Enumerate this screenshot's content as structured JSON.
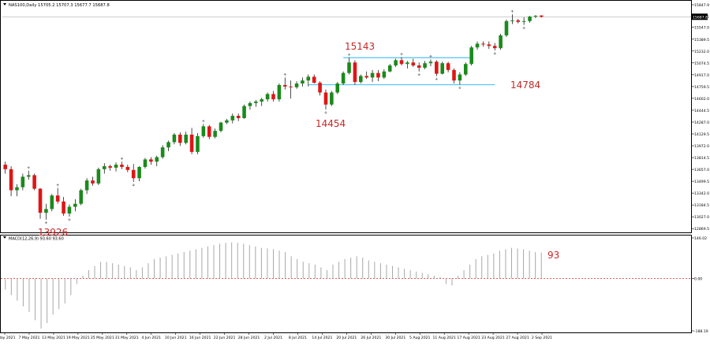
{
  "header": {
    "symbol_info": "NAS100,Daily  15705.2 15707.3 15677.7 15687.8",
    "indicator_info": "MACD(12,26,9) 93.60 93.60"
  },
  "annotations": {
    "low_start": "13926",
    "high_jul": "15143",
    "low_jul": "14454",
    "low_aug": "14784",
    "macd_value": "93"
  },
  "colors": {
    "bull": "#1a8a1a",
    "bear": "#e01515",
    "level_line": "#4fc3f7",
    "annotation": "#c62828",
    "zero_line": "#cc0000"
  },
  "chart_data": [
    {
      "type": "candlestick",
      "symbol": "NAS100",
      "timeframe": "Daily",
      "price_axis_labels": [
        "15847.9",
        "15690.1",
        "15547.0",
        "15389.5",
        "15232.0",
        "15074.5",
        "14917.0",
        "14759.5",
        "14602.0",
        "14444.5",
        "14287.0",
        "14129.5",
        "13972.0",
        "13814.5",
        "13657.0",
        "13499.5",
        "13342.0",
        "13184.5",
        "13027.0",
        "12869.5"
      ],
      "current_price_label": "15687.8",
      "date_labels": [
        "3 May 2021",
        "7 May 2021",
        "13 May 2021",
        "19 May 2021",
        "25 May 2021",
        "31 May 2021",
        "4 Jun 2021",
        "10 Jun 2021",
        "16 Jun 2021",
        "22 Jun 2021",
        "28 Jun 2021",
        "2 Jul 2021",
        "8 Jul 2021",
        "14 Jul 2021",
        "20 Jul 2021",
        "26 Jul 2021",
        "30 Jul 2021",
        "5 Aug 2021",
        "11 Aug 2021",
        "17 Aug 2021",
        "23 Aug 2021",
        "27 Aug 2021",
        "2 Sep 2021"
      ],
      "y_range": [
        12830,
        15890
      ],
      "levels": [
        15143,
        14784
      ],
      "candles": [
        {
          "o": 13720,
          "h": 13760,
          "l": 13600,
          "c": 13660
        },
        {
          "o": 13660,
          "h": 13700,
          "l": 13300,
          "c": 13380
        },
        {
          "o": 13380,
          "h": 13460,
          "l": 13300,
          "c": 13420
        },
        {
          "o": 13420,
          "h": 13600,
          "l": 13380,
          "c": 13560
        },
        {
          "o": 13560,
          "h": 13640,
          "l": 13520,
          "c": 13580
        },
        {
          "o": 13580,
          "h": 13600,
          "l": 13380,
          "c": 13400
        },
        {
          "o": 13400,
          "h": 13410,
          "l": 13000,
          "c": 13080
        },
        {
          "o": 13080,
          "h": 13200,
          "l": 12990,
          "c": 13130
        },
        {
          "o": 13130,
          "h": 13330,
          "l": 13100,
          "c": 13310
        },
        {
          "o": 13310,
          "h": 13410,
          "l": 13200,
          "c": 13230
        },
        {
          "o": 13230,
          "h": 13290,
          "l": 13040,
          "c": 13070
        },
        {
          "o": 13070,
          "h": 13190,
          "l": 13030,
          "c": 13160
        },
        {
          "o": 13160,
          "h": 13260,
          "l": 13100,
          "c": 13200
        },
        {
          "o": 13200,
          "h": 13400,
          "l": 13180,
          "c": 13380
        },
        {
          "o": 13380,
          "h": 13540,
          "l": 13330,
          "c": 13510
        },
        {
          "o": 13510,
          "h": 13560,
          "l": 13440,
          "c": 13470
        },
        {
          "o": 13470,
          "h": 13680,
          "l": 13450,
          "c": 13660
        },
        {
          "o": 13660,
          "h": 13740,
          "l": 13600,
          "c": 13700
        },
        {
          "o": 13700,
          "h": 13720,
          "l": 13640,
          "c": 13680
        },
        {
          "o": 13680,
          "h": 13750,
          "l": 13630,
          "c": 13720
        },
        {
          "o": 13720,
          "h": 13760,
          "l": 13660,
          "c": 13690
        },
        {
          "o": 13690,
          "h": 13720,
          "l": 13620,
          "c": 13650
        },
        {
          "o": 13650,
          "h": 13730,
          "l": 13490,
          "c": 13540
        },
        {
          "o": 13540,
          "h": 13700,
          "l": 13500,
          "c": 13690
        },
        {
          "o": 13690,
          "h": 13810,
          "l": 13670,
          "c": 13790
        },
        {
          "o": 13790,
          "h": 13820,
          "l": 13720,
          "c": 13760
        },
        {
          "o": 13760,
          "h": 13840,
          "l": 13700,
          "c": 13820
        },
        {
          "o": 13820,
          "h": 13980,
          "l": 13800,
          "c": 13950
        },
        {
          "o": 13950,
          "h": 14040,
          "l": 13900,
          "c": 14020
        },
        {
          "o": 14020,
          "h": 14140,
          "l": 13990,
          "c": 14120
        },
        {
          "o": 14120,
          "h": 14150,
          "l": 13970,
          "c": 14010
        },
        {
          "o": 14010,
          "h": 14160,
          "l": 13990,
          "c": 14120
        },
        {
          "o": 14120,
          "h": 14210,
          "l": 13860,
          "c": 13890
        },
        {
          "o": 13890,
          "h": 14140,
          "l": 13860,
          "c": 14100
        },
        {
          "o": 14100,
          "h": 14260,
          "l": 14080,
          "c": 14230
        },
        {
          "o": 14230,
          "h": 14250,
          "l": 14060,
          "c": 14090
        },
        {
          "o": 14090,
          "h": 14200,
          "l": 14070,
          "c": 14170
        },
        {
          "o": 14170,
          "h": 14290,
          "l": 14150,
          "c": 14280
        },
        {
          "o": 14280,
          "h": 14330,
          "l": 14260,
          "c": 14310
        },
        {
          "o": 14310,
          "h": 14400,
          "l": 14270,
          "c": 14370
        },
        {
          "o": 14370,
          "h": 14400,
          "l": 14300,
          "c": 14340
        },
        {
          "o": 14340,
          "h": 14520,
          "l": 14330,
          "c": 14500
        },
        {
          "o": 14500,
          "h": 14560,
          "l": 14450,
          "c": 14540
        },
        {
          "o": 14540,
          "h": 14580,
          "l": 14490,
          "c": 14560
        },
        {
          "o": 14560,
          "h": 14610,
          "l": 14500,
          "c": 14590
        },
        {
          "o": 14590,
          "h": 14680,
          "l": 14560,
          "c": 14660
        },
        {
          "o": 14660,
          "h": 14700,
          "l": 14560,
          "c": 14590
        },
        {
          "o": 14590,
          "h": 14800,
          "l": 14560,
          "c": 14780
        },
        {
          "o": 14780,
          "h": 14880,
          "l": 14720,
          "c": 14760
        },
        {
          "o": 14760,
          "h": 14840,
          "l": 14600,
          "c": 14750
        },
        {
          "o": 14750,
          "h": 14830,
          "l": 14730,
          "c": 14800
        },
        {
          "o": 14800,
          "h": 14880,
          "l": 14760,
          "c": 14840
        },
        {
          "o": 14840,
          "h": 14920,
          "l": 14760,
          "c": 14890
        },
        {
          "o": 14890,
          "h": 14920,
          "l": 14800,
          "c": 14810
        },
        {
          "o": 14810,
          "h": 14830,
          "l": 14640,
          "c": 14680
        },
        {
          "o": 14680,
          "h": 14720,
          "l": 14454,
          "c": 14520
        },
        {
          "o": 14520,
          "h": 14700,
          "l": 14500,
          "c": 14680
        },
        {
          "o": 14680,
          "h": 14820,
          "l": 14660,
          "c": 14800
        },
        {
          "o": 14800,
          "h": 14960,
          "l": 14780,
          "c": 14940
        },
        {
          "o": 14940,
          "h": 15143,
          "l": 14920,
          "c": 15080
        },
        {
          "o": 15080,
          "h": 15110,
          "l": 14784,
          "c": 14820
        },
        {
          "o": 14820,
          "h": 14920,
          "l": 14800,
          "c": 14900
        },
        {
          "o": 14900,
          "h": 14960,
          "l": 14860,
          "c": 14880
        },
        {
          "o": 14880,
          "h": 14980,
          "l": 14820,
          "c": 14940
        },
        {
          "o": 14940,
          "h": 14980,
          "l": 14830,
          "c": 14880
        },
        {
          "o": 14880,
          "h": 14990,
          "l": 14860,
          "c": 14960
        },
        {
          "o": 14960,
          "h": 15060,
          "l": 14950,
          "c": 15040
        },
        {
          "o": 15040,
          "h": 15130,
          "l": 15020,
          "c": 15110
        },
        {
          "o": 15110,
          "h": 15150,
          "l": 15040,
          "c": 15060
        },
        {
          "o": 15060,
          "h": 15100,
          "l": 15000,
          "c": 15080
        },
        {
          "o": 15080,
          "h": 15130,
          "l": 15020,
          "c": 15040
        },
        {
          "o": 15040,
          "h": 15080,
          "l": 14960,
          "c": 15010
        },
        {
          "o": 15010,
          "h": 15100,
          "l": 14990,
          "c": 15070
        },
        {
          "o": 15070,
          "h": 15120,
          "l": 15030,
          "c": 15090
        },
        {
          "o": 15090,
          "h": 15110,
          "l": 14900,
          "c": 14930
        },
        {
          "o": 14930,
          "h": 15090,
          "l": 14920,
          "c": 15070
        },
        {
          "o": 15070,
          "h": 15090,
          "l": 14950,
          "c": 14980
        },
        {
          "o": 14980,
          "h": 15000,
          "l": 14800,
          "c": 14840
        },
        {
          "o": 14840,
          "h": 14950,
          "l": 14784,
          "c": 14920
        },
        {
          "o": 14920,
          "h": 15080,
          "l": 14900,
          "c": 15060
        },
        {
          "o": 15060,
          "h": 15300,
          "l": 15040,
          "c": 15280
        },
        {
          "o": 15280,
          "h": 15360,
          "l": 15250,
          "c": 15330
        },
        {
          "o": 15330,
          "h": 15360,
          "l": 15290,
          "c": 15320
        },
        {
          "o": 15320,
          "h": 15360,
          "l": 15260,
          "c": 15300
        },
        {
          "o": 15300,
          "h": 15340,
          "l": 15240,
          "c": 15270
        },
        {
          "o": 15270,
          "h": 15460,
          "l": 15250,
          "c": 15440
        },
        {
          "o": 15440,
          "h": 15650,
          "l": 15420,
          "c": 15630
        },
        {
          "o": 15630,
          "h": 15720,
          "l": 15590,
          "c": 15640
        },
        {
          "o": 15640,
          "h": 15660,
          "l": 15600,
          "c": 15620
        },
        {
          "o": 15620,
          "h": 15680,
          "l": 15580,
          "c": 15630
        },
        {
          "o": 15630,
          "h": 15700,
          "l": 15610,
          "c": 15690
        },
        {
          "o": 15690,
          "h": 15710,
          "l": 15670,
          "c": 15700
        },
        {
          "o": 15705,
          "h": 15707,
          "l": 15677,
          "c": 15688
        }
      ]
    },
    {
      "type": "bar",
      "name": "MACD(12,26,9)",
      "value_axis_labels": [
        "146.02",
        "0.00",
        "-188.19"
      ],
      "y_range": [
        -188.19,
        146.02
      ],
      "values": [
        -40,
        -60,
        -80,
        -100,
        -120,
        -150,
        -180,
        -160,
        -130,
        -110,
        -90,
        -60,
        -20,
        10,
        30,
        45,
        60,
        60,
        55,
        50,
        45,
        40,
        30,
        40,
        55,
        70,
        75,
        80,
        85,
        90,
        95,
        100,
        105,
        110,
        115,
        120,
        125,
        128,
        130,
        128,
        125,
        120,
        115,
        110,
        108,
        105,
        100,
        95,
        80,
        70,
        60,
        55,
        50,
        40,
        30,
        50,
        60,
        70,
        75,
        80,
        75,
        65,
        60,
        55,
        50,
        45,
        40,
        35,
        30,
        25,
        20,
        15,
        10,
        5,
        -20,
        -25,
        10,
        30,
        50,
        70,
        80,
        85,
        90,
        100,
        105,
        110,
        108,
        105,
        100,
        95,
        93
      ]
    }
  ]
}
